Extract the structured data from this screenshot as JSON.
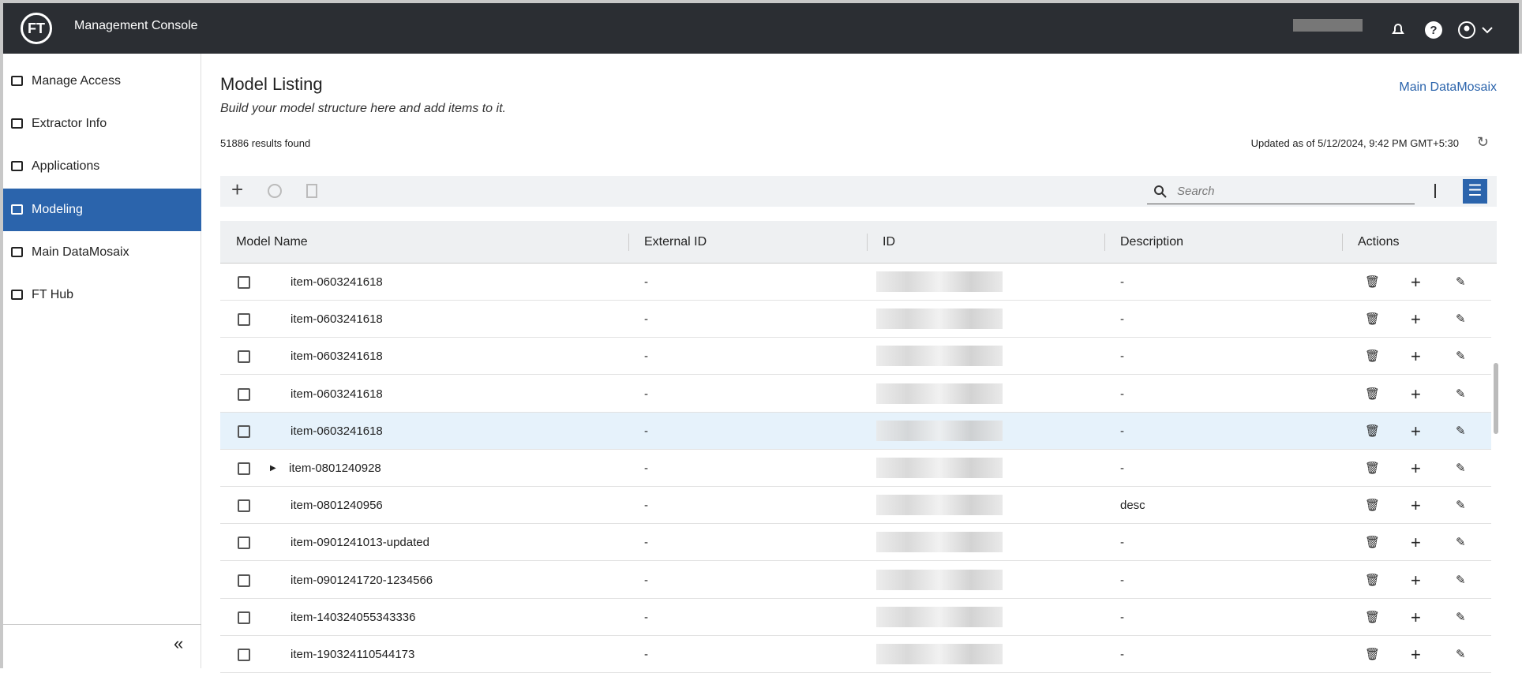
{
  "header": {
    "title": "Management Console",
    "logo": "FT"
  },
  "sidebar": {
    "items": [
      "Manage Access",
      "Extractor Info",
      "Applications",
      "Modeling",
      "Main DataMosaix",
      "FT Hub"
    ],
    "active": 3
  },
  "page": {
    "title": "Model Listing",
    "subtitle": "Build your model structure here and add items to it.",
    "results": "51886 results found",
    "updated": "Updated as of 5/12/2024, 9:42 PM GMT+5:30",
    "link": "Main DataMosaix",
    "search_placeholder": "Search"
  },
  "table": {
    "columns": [
      "Model Name",
      "External ID",
      "ID",
      "Description",
      "Actions"
    ],
    "rows": [
      {
        "name": "item-0603241618",
        "external_id": "-",
        "description": "-"
      },
      {
        "name": "item-0603241618",
        "external_id": "-",
        "description": "-"
      },
      {
        "name": "item-0603241618",
        "external_id": "-",
        "description": "-"
      },
      {
        "name": "item-0603241618",
        "external_id": "-",
        "description": "-"
      },
      {
        "name": "item-0603241618",
        "external_id": "-",
        "description": "-"
      },
      {
        "name": "item-0801240928",
        "external_id": "-",
        "description": "-"
      },
      {
        "name": "item-0801240956",
        "external_id": "-",
        "description": "desc"
      },
      {
        "name": "item-0901241013-updated",
        "external_id": "-",
        "description": "-"
      },
      {
        "name": "item-0901241720-1234566",
        "external_id": "-",
        "description": "-"
      },
      {
        "name": "item-140324055343336",
        "external_id": "-",
        "description": "-"
      },
      {
        "name": "item-190324110544173",
        "external_id": "-",
        "description": "-"
      }
    ],
    "highlighted": 4,
    "expandable": 5
  }
}
